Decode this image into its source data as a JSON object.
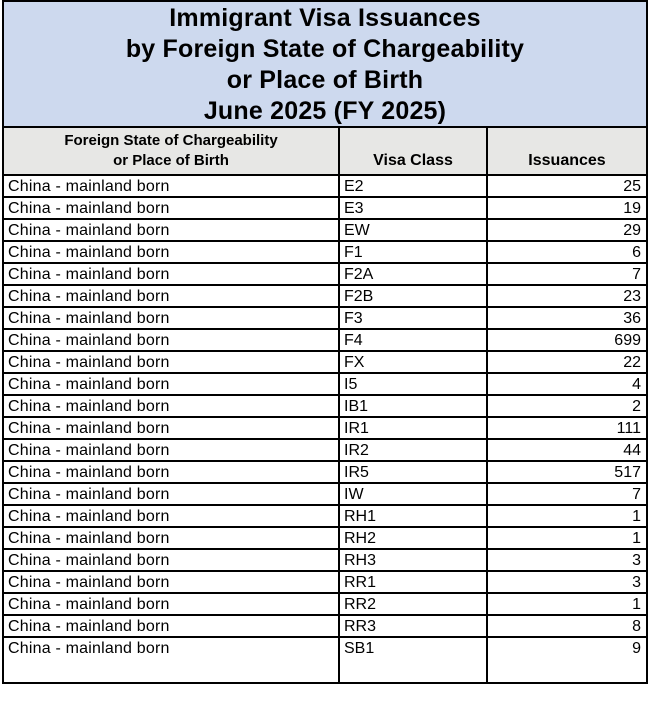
{
  "title": {
    "lines": [
      "Immigrant Visa Issuances",
      "by Foreign State of Chargeability",
      "or Place of Birth",
      "June 2025 (FY 2025)"
    ]
  },
  "table": {
    "columns": {
      "state_line1": "Foreign State of Chargeability",
      "state_line2": "or Place of Birth",
      "visa_class": "Visa Class",
      "issuances": "Issuances"
    },
    "rows": [
      {
        "state": "China - mainland born",
        "visa_class": "E2",
        "issuances": "25"
      },
      {
        "state": "China - mainland born",
        "visa_class": "E3",
        "issuances": "19"
      },
      {
        "state": "China - mainland born",
        "visa_class": "EW",
        "issuances": "29"
      },
      {
        "state": "China - mainland born",
        "visa_class": "F1",
        "issuances": "6"
      },
      {
        "state": "China - mainland born",
        "visa_class": "F2A",
        "issuances": "7"
      },
      {
        "state": "China - mainland born",
        "visa_class": "F2B",
        "issuances": "23"
      },
      {
        "state": "China - mainland born",
        "visa_class": "F3",
        "issuances": "36"
      },
      {
        "state": "China - mainland born",
        "visa_class": "F4",
        "issuances": "699"
      },
      {
        "state": "China - mainland born",
        "visa_class": "FX",
        "issuances": "22"
      },
      {
        "state": "China - mainland born",
        "visa_class": "I5",
        "issuances": "4"
      },
      {
        "state": "China - mainland born",
        "visa_class": "IB1",
        "issuances": "2"
      },
      {
        "state": "China - mainland born",
        "visa_class": "IR1",
        "issuances": "111"
      },
      {
        "state": "China - mainland born",
        "visa_class": "IR2",
        "issuances": "44"
      },
      {
        "state": "China - mainland born",
        "visa_class": "IR5",
        "issuances": "517"
      },
      {
        "state": "China - mainland born",
        "visa_class": "IW",
        "issuances": "7"
      },
      {
        "state": "China - mainland born",
        "visa_class": "RH1",
        "issuances": "1"
      },
      {
        "state": "China - mainland born",
        "visa_class": "RH2",
        "issuances": "1"
      },
      {
        "state": "China - mainland born",
        "visa_class": "RH3",
        "issuances": "3"
      },
      {
        "state": "China - mainland born",
        "visa_class": "RR1",
        "issuances": "3"
      },
      {
        "state": "China - mainland born",
        "visa_class": "RR2",
        "issuances": "1"
      },
      {
        "state": "China - mainland born",
        "visa_class": "RR3",
        "issuances": "8"
      },
      {
        "state": "China - mainland born",
        "visa_class": "SB1",
        "issuances": "9"
      }
    ]
  },
  "colors": {
    "title_bg": "#cdd9ee",
    "header_bg": "#e7e7e5",
    "border": "#000000",
    "text": "#000000"
  }
}
